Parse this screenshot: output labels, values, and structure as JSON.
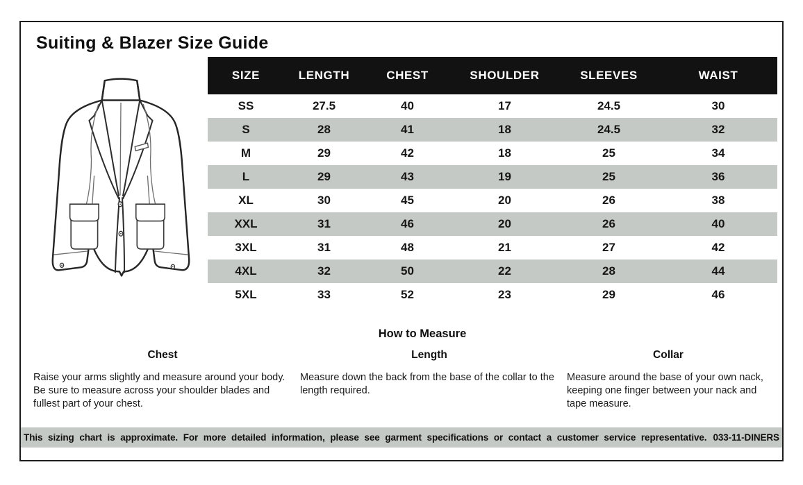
{
  "page": {
    "title": "Suiting & Blazer Size Guide"
  },
  "size_table": {
    "headers": [
      "SIZE",
      "LENGTH",
      "CHEST",
      "SHOULDER",
      "SLEEVES",
      "WAIST"
    ],
    "rows": [
      [
        "SS",
        "27.5",
        "40",
        "17",
        "24.5",
        "30"
      ],
      [
        "S",
        "28",
        "41",
        "18",
        "24.5",
        "32"
      ],
      [
        "M",
        "29",
        "42",
        "18",
        "25",
        "34"
      ],
      [
        "L",
        "29",
        "43",
        "19",
        "25",
        "36"
      ],
      [
        "XL",
        "30",
        "45",
        "20",
        "26",
        "38"
      ],
      [
        "XXL",
        "31",
        "46",
        "20",
        "26",
        "40"
      ],
      [
        "3XL",
        "31",
        "48",
        "21",
        "27",
        "42"
      ],
      [
        "4XL",
        "32",
        "50",
        "22",
        "28",
        "44"
      ],
      [
        "5XL",
        "33",
        "52",
        "23",
        "29",
        "46"
      ]
    ]
  },
  "how_to_measure": {
    "heading": "How to Measure",
    "sections": [
      {
        "title": "Chest",
        "text": "Raise your arms slightly and measure around your body. Be sure to measure across your shoulder blades and fullest part of your chest."
      },
      {
        "title": "Length",
        "text": "Measure down the back from the base of the collar to the length required."
      },
      {
        "title": "Collar",
        "text": "Measure around the base of your own nack, keeping one finger between your nack and tape measure."
      }
    ]
  },
  "footer": {
    "text": "This sizing chart is approximate. For more detailed information, please see garment specifications or contact a customer service representative.",
    "code": "033-11-DINERS"
  },
  "illustration": {
    "name": "blazer-line-drawing"
  },
  "colors": {
    "stripe": "#c5c9c5",
    "header_bg": "#121212",
    "header_text": "#ffffff",
    "footer_bg": "#c5c9c5",
    "border": "#1c1c1c"
  }
}
